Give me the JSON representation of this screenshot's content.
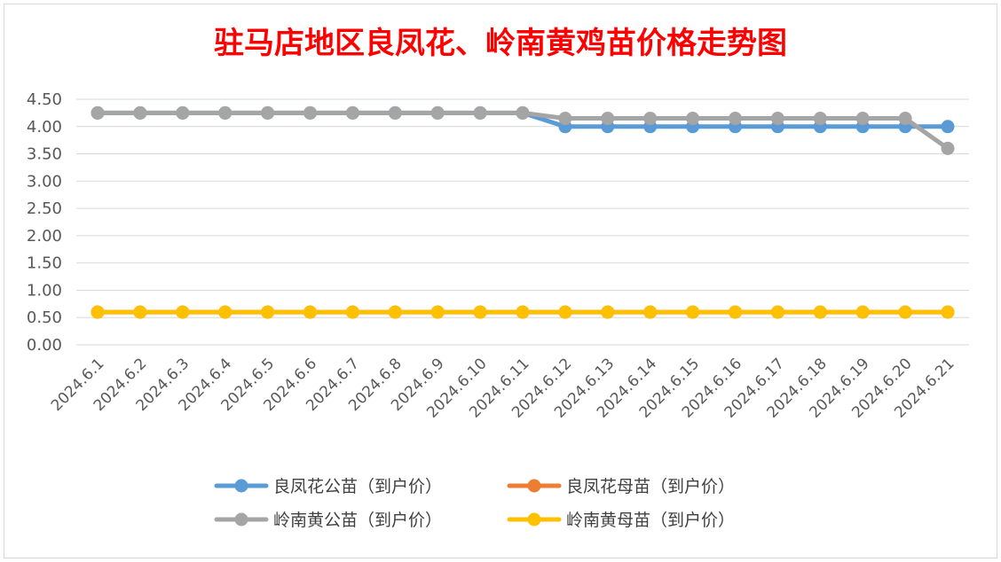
{
  "chart_data": {
    "type": "line",
    "title": "驻马店地区良凤花、岭南黄鸡苗价格走势图",
    "xlabel": "",
    "ylabel": "",
    "ylim": [
      0,
      4.5
    ],
    "yticks": [
      "0.00",
      "0.50",
      "1.00",
      "1.50",
      "2.00",
      "2.50",
      "3.00",
      "3.50",
      "4.00",
      "4.50"
    ],
    "grid": true,
    "legend_position": "bottom",
    "categories": [
      "2024.6.1",
      "2024.6.2",
      "2024.6.3",
      "2024.6.4",
      "2024.6.5",
      "2024.6.6",
      "2024.6.7",
      "2024.6.8",
      "2024.6.9",
      "2024.6.10",
      "2024.6.11",
      "2024.6.12",
      "2024.6.13",
      "2024.6.14",
      "2024.6.15",
      "2024.6.16",
      "2024.6.17",
      "2024.6.18",
      "2024.6.19",
      "2024.6.20",
      "2024.6.21"
    ],
    "series": [
      {
        "name": "良凤花公苗（到户价）",
        "color": "#5b9bd5",
        "values": [
          4.25,
          4.25,
          4.25,
          4.25,
          4.25,
          4.25,
          4.25,
          4.25,
          4.25,
          4.25,
          4.25,
          4.0,
          4.0,
          4.0,
          4.0,
          4.0,
          4.0,
          4.0,
          4.0,
          4.0,
          4.0
        ]
      },
      {
        "name": "良凤花母苗（到户价）",
        "color": "#ed7d31",
        "values": [
          0.6,
          0.6,
          0.6,
          0.6,
          0.6,
          0.6,
          0.6,
          0.6,
          0.6,
          0.6,
          0.6,
          0.6,
          0.6,
          0.6,
          0.6,
          0.6,
          0.6,
          0.6,
          0.6,
          0.6,
          0.6
        ]
      },
      {
        "name": "岭南黄公苗（到户价）",
        "color": "#a5a5a5",
        "values": [
          4.25,
          4.25,
          4.25,
          4.25,
          4.25,
          4.25,
          4.25,
          4.25,
          4.25,
          4.25,
          4.25,
          4.15,
          4.15,
          4.15,
          4.15,
          4.15,
          4.15,
          4.15,
          4.15,
          4.15,
          3.6
        ]
      },
      {
        "name": "岭南黄母苗（到户价）",
        "color": "#ffc000",
        "values": [
          0.6,
          0.6,
          0.6,
          0.6,
          0.6,
          0.6,
          0.6,
          0.6,
          0.6,
          0.6,
          0.6,
          0.6,
          0.6,
          0.6,
          0.6,
          0.6,
          0.6,
          0.6,
          0.6,
          0.6,
          0.6
        ]
      }
    ]
  }
}
